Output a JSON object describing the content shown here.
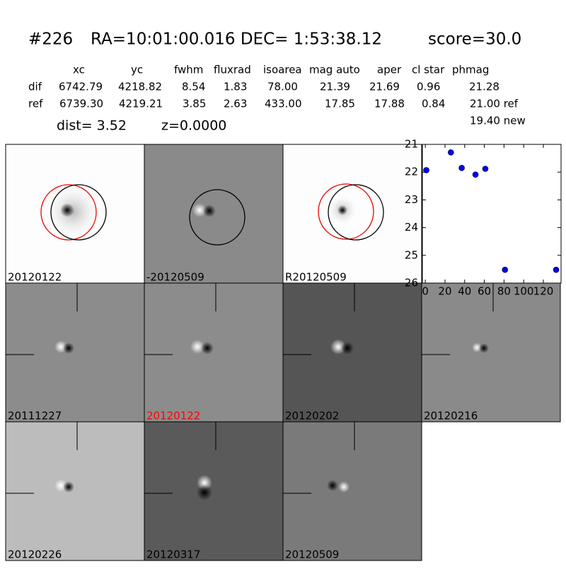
{
  "header": {
    "id": "#226",
    "coords": "RA=10:01:00.016 DEC= 1:53:38.12",
    "score": "score=30.0"
  },
  "table": {
    "columns": [
      "xc",
      "yc",
      "fwhm",
      "fluxrad",
      "isoarea",
      "mag auto",
      "aper",
      "cl star",
      "phmag"
    ],
    "rows": [
      [
        "dif",
        "6742.79",
        "4218.82",
        "8.54",
        "1.83",
        "78.00",
        "21.39",
        "21.69",
        "0.96",
        "21.28"
      ],
      [
        "ref",
        "6739.30",
        "4219.21",
        "3.85",
        "2.63",
        "433.00",
        "17.85",
        "17.88",
        "0.84",
        "21.00 ref"
      ]
    ],
    "extra": "19.40 new"
  },
  "dist": "dist=  3.52",
  "z": "z=0.0000",
  "panels": [
    "20120122",
    "-20120509",
    "R20120509",
    "20111227",
    "20120122",
    "20120202",
    "20120216",
    "20120226",
    "20120317",
    "20120509"
  ],
  "chart_data": {
    "type": "scatter",
    "color": "#0000ff",
    "x": [
      1,
      26,
      37,
      51,
      61,
      81,
      133
    ],
    "values": [
      21.93,
      21.29,
      21.85,
      22.09,
      21.88,
      25.52,
      25.52
    ],
    "xlim": [
      -3,
      138
    ],
    "ylim": [
      26,
      21
    ],
    "xticks": [
      0,
      20,
      40,
      60,
      80,
      100,
      120
    ],
    "yticks": [
      21,
      22,
      23,
      24,
      25,
      26
    ]
  }
}
